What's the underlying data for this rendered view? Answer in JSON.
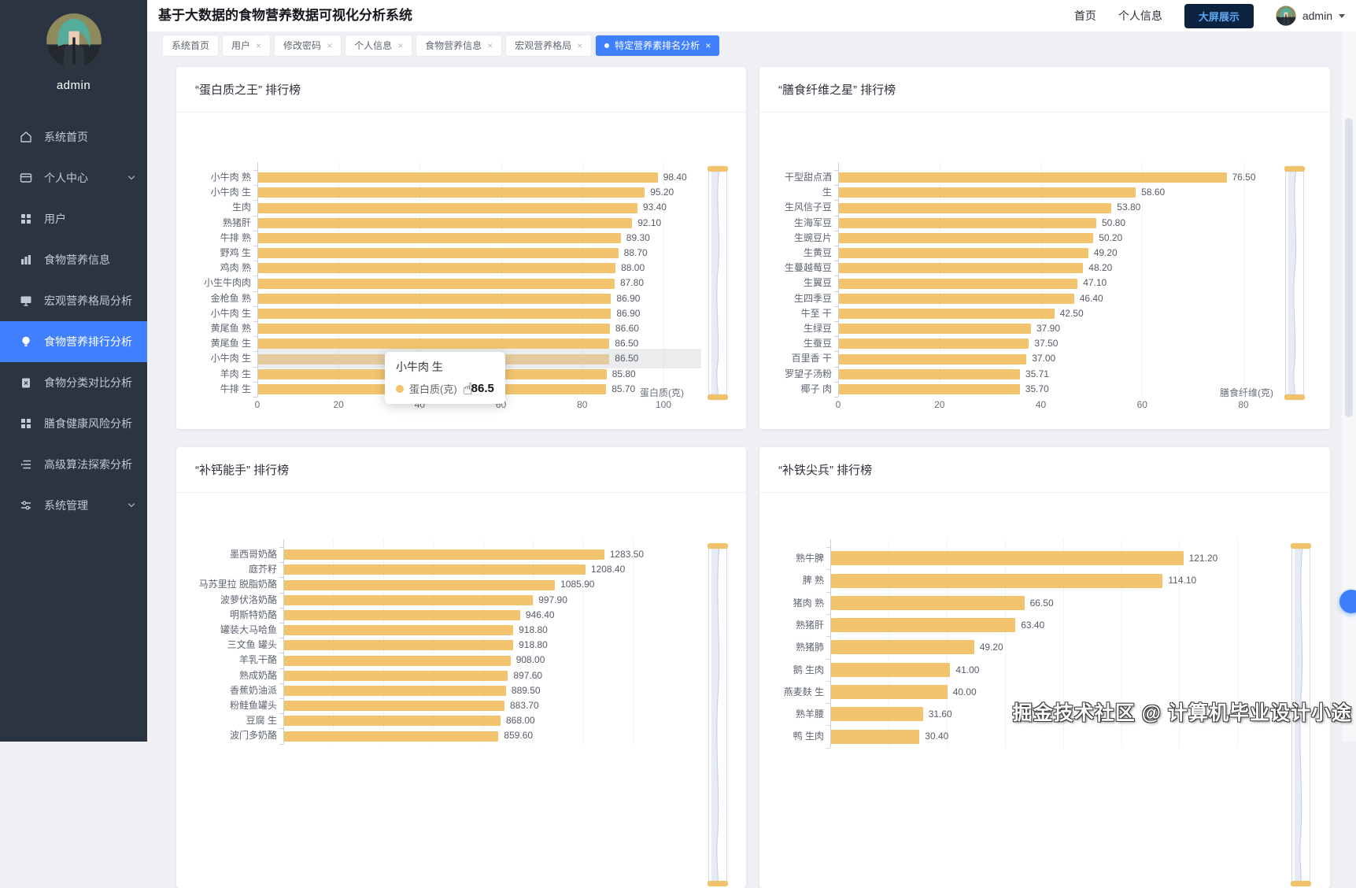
{
  "header": {
    "title": "基于大数据的食物营养数据可视化分析系统",
    "nav": [
      "首页",
      "个人信息"
    ],
    "screen_button": "大屏展示",
    "username": "admin"
  },
  "sidebar": {
    "username": "admin",
    "items": [
      {
        "label": "系统首页",
        "icon": "home-icon",
        "active": false,
        "chevron": false
      },
      {
        "label": "个人中心",
        "icon": "user-panel-icon",
        "active": false,
        "chevron": true
      },
      {
        "label": "用户",
        "icon": "grid-icon",
        "active": false,
        "chevron": false
      },
      {
        "label": "食物营养信息",
        "icon": "chart-book-icon",
        "active": false,
        "chevron": false
      },
      {
        "label": "宏观营养格局分析",
        "icon": "monitor-icon",
        "active": false,
        "chevron": false
      },
      {
        "label": "食物营养排行分析",
        "icon": "bulb-icon",
        "active": true,
        "chevron": false
      },
      {
        "label": "食物分类对比分析",
        "icon": "clipboard-icon",
        "active": false,
        "chevron": false
      },
      {
        "label": "膳食健康风险分析",
        "icon": "blocks-icon",
        "active": false,
        "chevron": false
      },
      {
        "label": "高级算法探索分析",
        "icon": "indent-list-icon",
        "active": false,
        "chevron": false
      },
      {
        "label": "系统管理",
        "icon": "sliders-icon",
        "active": false,
        "chevron": true
      }
    ]
  },
  "tabs": [
    {
      "label": "系统首页",
      "closable": false,
      "active": false
    },
    {
      "label": "用户",
      "closable": true,
      "active": false
    },
    {
      "label": "修改密码",
      "closable": true,
      "active": false
    },
    {
      "label": "个人信息",
      "closable": true,
      "active": false
    },
    {
      "label": "食物营养信息",
      "closable": true,
      "active": false
    },
    {
      "label": "宏观营养格局",
      "closable": true,
      "active": false
    },
    {
      "label": "特定营养素排名分析",
      "closable": true,
      "active": true
    }
  ],
  "chart_data": [
    {
      "type": "bar",
      "orientation": "horizontal",
      "title": "“蛋白质之王” 排行榜",
      "xlabel": "蛋白质(克)",
      "xmax": 100,
      "ticks": [
        0,
        20,
        40,
        60,
        80,
        100
      ],
      "categories": [
        "小牛肉 熟",
        "小牛肉 生",
        "生肉",
        "熟猪肝",
        "牛排 熟",
        "野鸡 生",
        "鸡肉 熟",
        "小生牛肉肉",
        "金枪鱼 熟",
        "小牛肉 生",
        "黄尾鱼 熟",
        "黄尾鱼 生",
        "小牛肉 生",
        "羊肉 生",
        "牛排 生"
      ],
      "values": [
        98.4,
        95.2,
        93.4,
        92.1,
        89.3,
        88.7,
        88.0,
        87.8,
        86.9,
        86.9,
        86.6,
        86.5,
        86.5,
        85.8,
        85.7
      ],
      "highlight_index": 12
    },
    {
      "type": "bar",
      "orientation": "horizontal",
      "title": "“膳食纤维之星” 排行榜",
      "xlabel": "膳食纤维(克)",
      "xmax": 80,
      "ticks": [
        0,
        20,
        40,
        60,
        80
      ],
      "categories": [
        "干型甜点酒",
        "生",
        "生风信子豆",
        "生海军豆",
        "生豌豆片",
        "生黄豆",
        "生蔓越莓豆",
        "生翼豆",
        "生四季豆",
        "牛至 干",
        "生绿豆",
        "生蚕豆",
        "百里香 干",
        "罗望子汤粉",
        "椰子 肉"
      ],
      "values": [
        76.5,
        58.6,
        53.8,
        50.8,
        50.2,
        49.2,
        48.2,
        47.1,
        46.4,
        42.5,
        37.9,
        37.5,
        37.0,
        35.71,
        35.7
      ],
      "highlight_index": null
    },
    {
      "type": "bar",
      "orientation": "horizontal",
      "title": "“补钙能手” 排行榜",
      "xlabel": "",
      "xmax": 1600,
      "ticks": [],
      "categories": [
        "墨西哥奶酪",
        "庭芥籽",
        "马苏里拉 脱脂奶酪",
        "波萝伏洛奶酪",
        "明斯特奶酪",
        "罐装大马哈鱼",
        "三文鱼 罐头",
        "羊乳干酪",
        "熟成奶酪",
        "香蕉奶油派",
        "粉鲑鱼罐头",
        "豆腐 生",
        "波门多奶酪"
      ],
      "values": [
        1283.5,
        1208.4,
        1085.9,
        997.9,
        946.4,
        918.8,
        918.8,
        908.0,
        897.6,
        889.5,
        883.7,
        868.0,
        859.6
      ],
      "highlight_index": null
    },
    {
      "type": "bar",
      "orientation": "horizontal",
      "title": "“补铁尖兵” 排行榜",
      "xlabel": "",
      "xmax": 150,
      "ticks": [],
      "categories": [
        "熟牛脾",
        "脾 熟",
        "猪肉 熟",
        "熟猪肝",
        "熟猪肺",
        "鹅 生肉",
        "燕麦麸 生",
        "熟羊腰",
        "鸭 生肉"
      ],
      "values": [
        121.2,
        114.1,
        66.5,
        63.4,
        49.2,
        41.0,
        40.0,
        31.6,
        30.4
      ],
      "highlight_index": null
    }
  ],
  "tooltip": {
    "title": "小牛肉 生",
    "series": "蛋白质(克)",
    "value": "86.5"
  },
  "watermark": "掘金技术社区 @ 计算机毕业设计小途",
  "colors": {
    "bar": "#f2c46d",
    "bar_highlight": "#e3cb9e",
    "accent": "#4080ff",
    "sidebar_bg": "#2b3441",
    "screen_button_bg": "#0c2340",
    "screen_button_text": "#5ea8f2"
  }
}
